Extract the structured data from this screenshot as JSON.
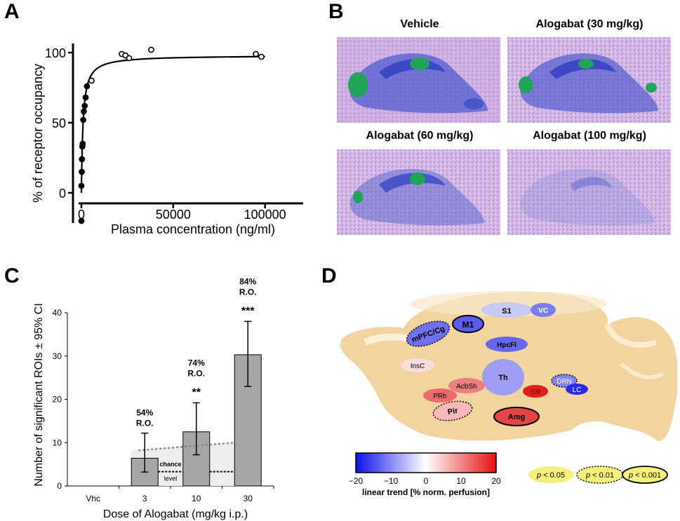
{
  "panels": {
    "a": "A",
    "b": "B",
    "c": "C",
    "d": "D"
  },
  "colors": {
    "brain_green": "#1fa45a",
    "brain_blue": "#4a55c8",
    "brain_bg": "#c9a6df",
    "bar": "#a6a6a6"
  },
  "chart_data": [
    {
      "type": "scatter",
      "ylabel": "% of receptor occupancy",
      "xlabel": "Plasma concentration (ng/ml)",
      "xticks": [
        "0",
        "50000",
        "100000"
      ],
      "yticks": [
        "0",
        "50",
        "100"
      ],
      "xlim": [
        -5000,
        120000
      ],
      "ylim": [
        -20,
        108
      ],
      "points": [
        {
          "x": 0,
          "y": 5
        },
        {
          "x": 200,
          "y": 15
        },
        {
          "x": 300,
          "y": 24
        },
        {
          "x": 500,
          "y": 33
        },
        {
          "x": 700,
          "y": 35
        },
        {
          "x": 1000,
          "y": 52
        },
        {
          "x": 1300,
          "y": 58
        },
        {
          "x": 1800,
          "y": 62
        },
        {
          "x": 2300,
          "y": 68
        },
        {
          "x": 3000,
          "y": 76
        },
        {
          "x": 5500,
          "y": 80
        },
        {
          "x": 22000,
          "y": 99
        },
        {
          "x": 24000,
          "y": 98
        },
        {
          "x": 26000,
          "y": 96
        },
        {
          "x": 38000,
          "y": 102
        },
        {
          "x": 95000,
          "y": 99
        },
        {
          "x": 98000,
          "y": 97
        },
        {
          "x": 0,
          "y": -20
        }
      ],
      "fit": "hill"
    },
    {
      "type": "bar",
      "ylabel": "Number of significant ROIs ± 95% CI",
      "xlabel": "Dose of Alogabat (mg/kg i.p.)",
      "categories": [
        "Vhc",
        "3",
        "10",
        "30"
      ],
      "values": [
        0,
        6.4,
        12.5,
        30.3
      ],
      "ci_low": [
        0,
        3.2,
        7.2,
        23.0
      ],
      "ci_high": [
        0,
        12.2,
        19.2,
        38.0
      ],
      "ylim": [
        0,
        40
      ],
      "yticks": [
        "0",
        "10",
        "20",
        "30",
        "40"
      ],
      "annotations": [
        {
          "category": "3",
          "occupancy": "54%",
          "ro": "R.O.",
          "sig": ""
        },
        {
          "category": "10",
          "occupancy": "74%",
          "ro": "R.O.",
          "sig": "**"
        },
        {
          "category": "30",
          "occupancy": "84%",
          "ro": "R.O.",
          "sig": "***"
        }
      ],
      "chance_upper": [
        8.2,
        10.0
      ],
      "chance_lower": [
        3.3,
        3.3
      ],
      "chance_label_1": "chance",
      "chance_label_2": "level"
    }
  ],
  "panel_b": {
    "titles": [
      "Vehicle",
      "Alogabat (30 mg/kg)",
      "Alogabat (60 mg/kg)",
      "Alogabat (100 mg/kg)"
    ]
  },
  "panel_d": {
    "regions": [
      {
        "label": "mPFC/Cg",
        "color": "#6f6ff0"
      },
      {
        "label": "M1",
        "color": "#5b5bee"
      },
      {
        "label": "S1",
        "color": "#c9c9f7"
      },
      {
        "label": "VC",
        "color": "#7d7df2"
      },
      {
        "label": "HpcFl",
        "color": "#6767ee"
      },
      {
        "label": "InsC",
        "color": "#fbdcdc"
      },
      {
        "label": "Th",
        "color": "#9e9ef4"
      },
      {
        "label": "AcbSh",
        "color": "#ee7f7f"
      },
      {
        "label": "PRh",
        "color": "#ec6a6a"
      },
      {
        "label": "Pir",
        "color": "#f6b8b8"
      },
      {
        "label": "SN",
        "color": "#e11f1f"
      },
      {
        "label": "DRN",
        "color": "#8282f0"
      },
      {
        "label": "LC",
        "color": "#2a2aea"
      },
      {
        "label": "Amg",
        "color": "#e44545"
      }
    ],
    "colorbar": {
      "ticks": [
        "−20",
        "−10",
        "0",
        "10",
        "20"
      ],
      "label": "linear trend [% norm. perfusion]"
    },
    "legend": [
      {
        "p": "p",
        "text": " < 0.05"
      },
      {
        "p": "p",
        "text": " < 0.01"
      },
      {
        "p": "p",
        "text": " < 0.001"
      }
    ]
  }
}
